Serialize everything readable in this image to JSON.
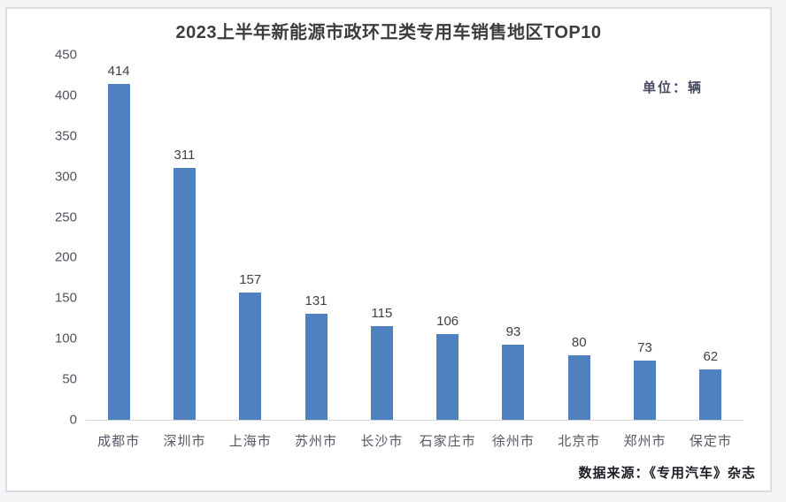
{
  "page": {
    "background_color": "#f6f4f6",
    "card_background": "#ffffff",
    "card_border_color": "#dcdbe3"
  },
  "header": {
    "title": "2023上半年新能源市政环卫类专用车销售地区TOP10",
    "unit_label": "单位：辆"
  },
  "footer": {
    "source": "数据来源：《专用汽车》杂志"
  },
  "chart_data": {
    "type": "bar",
    "title": "2023上半年新能源市政环卫类专用车销售地区TOP10",
    "unit": "辆",
    "categories": [
      "成都市",
      "深圳市",
      "上海市",
      "苏州市",
      "长沙市",
      "石家庄市",
      "徐州市",
      "北京市",
      "郑州市",
      "保定市"
    ],
    "values": [
      414,
      311,
      157,
      131,
      115,
      106,
      93,
      80,
      73,
      62
    ],
    "value_labels_shown": true,
    "ylim": [
      0,
      450
    ],
    "yticks": [
      0,
      50,
      100,
      150,
      200,
      250,
      300,
      350,
      400,
      450
    ],
    "grid": false,
    "legend": "none",
    "bar_color": "#4E81BD",
    "axis_line_color": "#d6d6dc"
  }
}
